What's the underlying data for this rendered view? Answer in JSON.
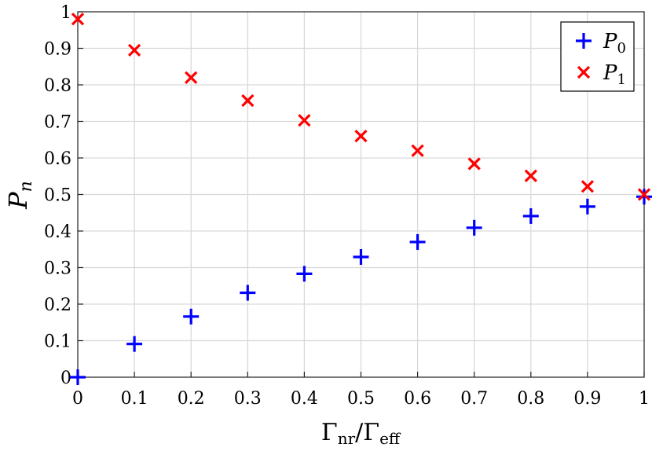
{
  "chart_data": {
    "type": "scatter",
    "x": [
      0,
      0.1,
      0.2,
      0.3,
      0.4,
      0.5,
      0.6,
      0.7,
      0.8,
      0.9,
      1
    ],
    "series": [
      {
        "name": "P_0",
        "label": {
          "main": "P",
          "sub": "0"
        },
        "marker": "plus",
        "color": "#0000ff",
        "values": [
          0.0,
          0.091,
          0.166,
          0.231,
          0.283,
          0.329,
          0.37,
          0.409,
          0.441,
          0.467,
          0.494
        ]
      },
      {
        "name": "P_1",
        "label": {
          "main": "P",
          "sub": "1"
        },
        "marker": "x",
        "color": "#ff0000",
        "values": [
          0.98,
          0.895,
          0.82,
          0.757,
          0.703,
          0.66,
          0.62,
          0.584,
          0.551,
          0.522,
          0.5
        ]
      }
    ],
    "xlabel": {
      "text": "Γnr/Γeff",
      "main1": "Γ",
      "sub1": "nr",
      "slash": "/",
      "main2": "Γ",
      "sub2": "eff"
    },
    "ylabel": {
      "text": "Pn",
      "main": "P",
      "sub": "n"
    },
    "xlim": [
      0,
      1
    ],
    "ylim": [
      0,
      1
    ],
    "xticks": [
      0,
      0.1,
      0.2,
      0.3,
      0.4,
      0.5,
      0.6,
      0.7,
      0.8,
      0.9,
      1
    ],
    "yticks": [
      0,
      0.1,
      0.2,
      0.3,
      0.4,
      0.5,
      0.6,
      0.7,
      0.8,
      0.9,
      1
    ],
    "xtick_labels": [
      "0",
      "0.1",
      "0.2",
      "0.3",
      "0.4",
      "0.5",
      "0.6",
      "0.7",
      "0.8",
      "0.9",
      "1"
    ],
    "ytick_labels": [
      "0",
      "0.1",
      "0.2",
      "0.3",
      "0.4",
      "0.5",
      "0.6",
      "0.7",
      "0.8",
      "0.9",
      "1"
    ],
    "grid": true,
    "legend_position": "top-right"
  }
}
